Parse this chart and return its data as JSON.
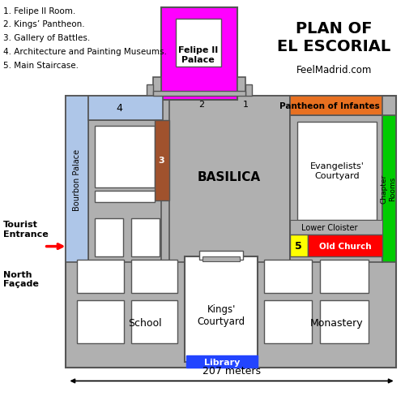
{
  "title": "PLAN OF\nEL ESCORIAL",
  "subtitle": "FeelMadrid.com",
  "legend": [
    "1. Felipe II Room.",
    "2. Kings’ Pantheon.",
    "3. Gallery of Battles.",
    "4. Architecture and Painting Museums.",
    "5. Main Staircase."
  ],
  "bg_color": "#ffffff",
  "gray": "#b0b0b0",
  "dark_edge": "#555555",
  "light_blue": "#aec6e8",
  "magenta": "#ff00ff",
  "orange": "#e87020",
  "green": "#00cc00",
  "brown": "#a0522d",
  "yellow": "#ffff00",
  "red": "#ff0000",
  "blue": "#2244ff",
  "white": "#ffffff",
  "dim_label": "207 meters",
  "tourist_entrance": "Tourist\nEntrance",
  "north_facade": "North\nFaçade",
  "arrow_color": "#ff0000"
}
